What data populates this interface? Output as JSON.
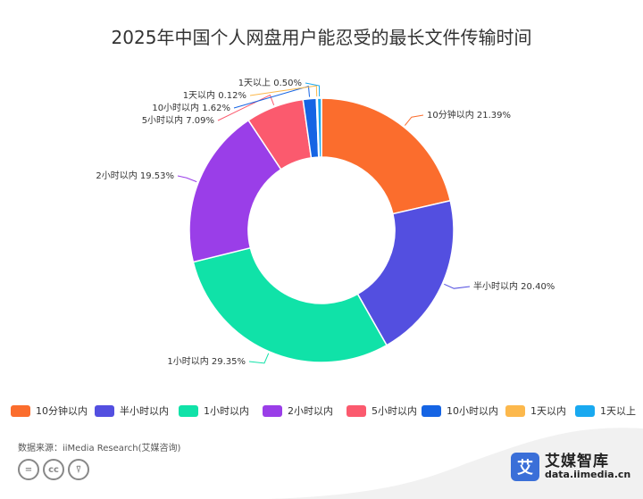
{
  "title": "2025年中国个人网盘用户能忍受的最长文件传输时间",
  "chart_data": {
    "type": "pie",
    "donut": true,
    "categories": [
      "10分钟以内",
      "半小时以内",
      "1小时以内",
      "2小时以内",
      "5小时以内",
      "10小时以内",
      "1天以内",
      "1天以上"
    ],
    "values": [
      21.39,
      20.4,
      29.35,
      19.53,
      7.09,
      1.62,
      0.12,
      0.5
    ],
    "labels": [
      "10分钟以内 21.39%",
      "半小时以内 20.40%",
      "1小时以内 29.35%",
      "2小时以内 19.53%",
      "5小时以内 7.09%",
      "10小时以内 1.62%",
      "1天以内 0.12%",
      "1天以上 0.50%"
    ],
    "colors": [
      "#fb6d2d",
      "#534fe0",
      "#10e2a8",
      "#9a3ee8",
      "#fb5a6e",
      "#1564e4",
      "#fcb84c",
      "#19a9f0"
    ],
    "legend_position": "bottom"
  },
  "footer": {
    "source": "数据来源：iiMedia Research(艾媒咨询)",
    "brand_name": "艾媒智库",
    "brand_url": "data.iimedia.cn",
    "brand_logo_glyph": "艾",
    "license_icons": [
      "equal-icon",
      "cc-icon",
      "person-icon"
    ]
  }
}
